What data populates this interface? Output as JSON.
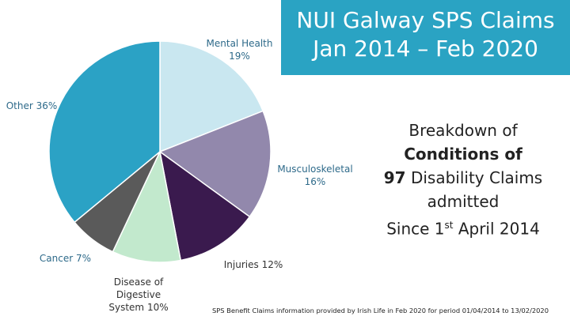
{
  "chart_data": {
    "type": "pie",
    "title": [
      "NUI Galway SPS Claims",
      "Jan 2014 –  Feb 2020"
    ],
    "categories": [
      "Mental Health",
      "Musculoskeletal",
      "Injuries",
      "Disease of Digestive System",
      "Cancer",
      "Other"
    ],
    "values": [
      19,
      16,
      12,
      10,
      7,
      36
    ],
    "value_labels": [
      "19%",
      "16%",
      "12%",
      "10%",
      "7%",
      "36%"
    ],
    "colors": [
      "#c9e7f0",
      "#9288ac",
      "#3a1a4e",
      "#c2e9cd",
      "#5a5a5a",
      "#2ba2c5"
    ],
    "annotation": [
      "Breakdown of",
      "Conditions of",
      "97",
      " Disability Claims",
      "admitted",
      "Since 1",
      "st",
      " April 2014"
    ],
    "footnote": "SPS Benefit Claims information provided by Irish Life in Feb 2020 for period 01/04/2014 to 13/02/2020"
  }
}
